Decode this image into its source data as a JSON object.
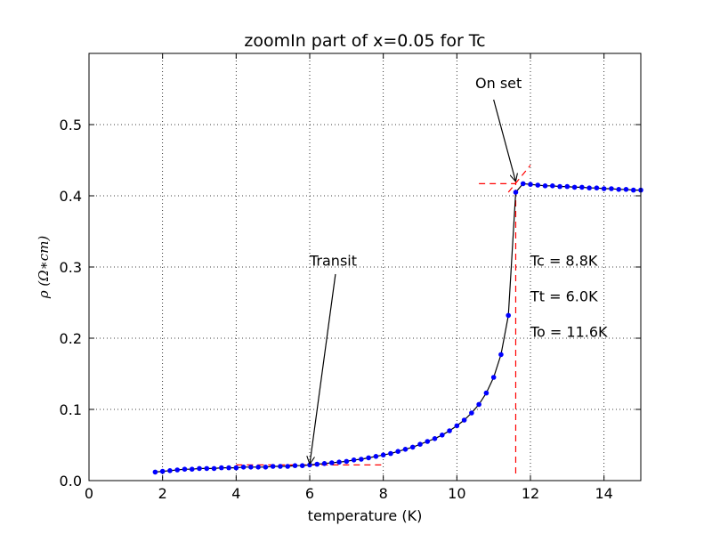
{
  "chart_data": {
    "type": "line",
    "title": "zoomIn part of x=0.05 for Tc",
    "xlabel": "temperature (K)",
    "ylabel": "ρ (Ω∗cm)",
    "xlim": [
      0,
      15
    ],
    "ylim": [
      0,
      0.6
    ],
    "xticks": [
      0,
      2,
      4,
      6,
      8,
      10,
      12,
      14
    ],
    "xtick_labels": [
      "0",
      "2",
      "4",
      "6",
      "8",
      "10",
      "12",
      "14"
    ],
    "yticks": [
      0.0,
      0.1,
      0.2,
      0.3,
      0.4,
      0.5
    ],
    "ytick_labels": [
      "0.0",
      "0.1",
      "0.2",
      "0.3",
      "0.4",
      "0.5"
    ],
    "grid": true,
    "series": [
      {
        "color": "#0000ff",
        "line_color": "#000000",
        "marker": "circle",
        "x": [
          1.8,
          2.0,
          2.2,
          2.4,
          2.6,
          2.8,
          3.0,
          3.2,
          3.4,
          3.6,
          3.8,
          4.0,
          4.2,
          4.4,
          4.6,
          4.8,
          5.0,
          5.2,
          5.4,
          5.6,
          5.8,
          6.0,
          6.2,
          6.4,
          6.6,
          6.8,
          7.0,
          7.2,
          7.4,
          7.6,
          7.8,
          8.0,
          8.2,
          8.4,
          8.6,
          8.8,
          9.0,
          9.2,
          9.4,
          9.6,
          9.8,
          10.0,
          10.2,
          10.4,
          10.6,
          10.8,
          11.0,
          11.2,
          11.4,
          11.6,
          11.8,
          12.0,
          12.2,
          12.4,
          12.6,
          12.8,
          13.0,
          13.2,
          13.4,
          13.6,
          13.8,
          14.0,
          14.2,
          14.4,
          14.6,
          14.8,
          15.0
        ],
        "y": [
          0.012,
          0.013,
          0.014,
          0.015,
          0.016,
          0.016,
          0.017,
          0.017,
          0.017,
          0.018,
          0.018,
          0.018,
          0.019,
          0.019,
          0.019,
          0.019,
          0.02,
          0.02,
          0.02,
          0.021,
          0.021,
          0.022,
          0.023,
          0.024,
          0.025,
          0.026,
          0.027,
          0.029,
          0.03,
          0.032,
          0.034,
          0.036,
          0.038,
          0.041,
          0.044,
          0.047,
          0.051,
          0.055,
          0.059,
          0.064,
          0.07,
          0.077,
          0.085,
          0.095,
          0.107,
          0.123,
          0.145,
          0.177,
          0.232,
          0.405,
          0.417,
          0.416,
          0.415,
          0.414,
          0.414,
          0.413,
          0.413,
          0.412,
          0.412,
          0.411,
          0.411,
          0.41,
          0.41,
          0.409,
          0.409,
          0.408,
          0.408
        ]
      }
    ],
    "dashed_lines": [
      {
        "color": "#ff0000",
        "x": [
          4.0,
          8.0
        ],
        "y": [
          0.022,
          0.022
        ]
      },
      {
        "color": "#ff0000",
        "x": [
          10.6,
          11.6
        ],
        "y": [
          0.417,
          0.417
        ]
      },
      {
        "color": "#ff0000",
        "x": [
          11.6,
          11.6
        ],
        "y": [
          0.01,
          0.42
        ]
      },
      {
        "color": "#ff0000",
        "x": [
          11.4,
          12.0
        ],
        "y": [
          0.405,
          0.443
        ]
      }
    ],
    "annotations": [
      {
        "text": "On set",
        "text_x": 10.5,
        "text_y": 0.551,
        "arrow_from_x": 11.0,
        "arrow_from_y": 0.535,
        "arrow_to_x": 11.6,
        "arrow_to_y": 0.42
      },
      {
        "text": "Transit",
        "text_x": 6.0,
        "text_y": 0.302,
        "arrow_from_x": 6.7,
        "arrow_from_y": 0.29,
        "arrow_to_x": 6.0,
        "arrow_to_y": 0.023
      },
      {
        "text": "Tc = 8.8K",
        "text_x": 12.0,
        "text_y": 0.302
      },
      {
        "text": "Tt = 6.0K",
        "text_x": 12.0,
        "text_y": 0.252
      },
      {
        "text": "To = 11.6K",
        "text_x": 12.0,
        "text_y": 0.202
      }
    ]
  }
}
